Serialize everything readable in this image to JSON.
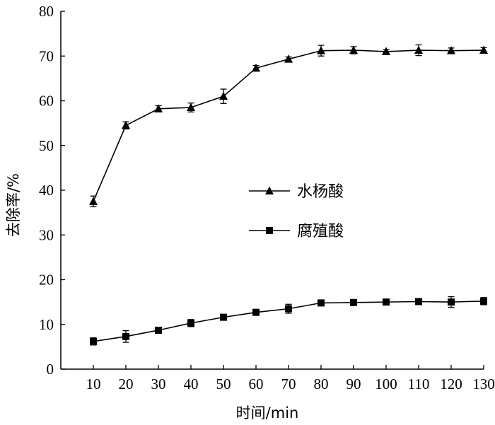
{
  "chart_data": {
    "type": "line",
    "title": "",
    "xlabel": "时间/min",
    "ylabel": "去除率/%",
    "x": [
      10,
      20,
      30,
      40,
      50,
      60,
      70,
      80,
      90,
      100,
      110,
      120,
      130
    ],
    "xlim": [
      0,
      130
    ],
    "ylim": [
      0,
      80
    ],
    "yticks": [
      0,
      10,
      20,
      30,
      40,
      50,
      60,
      70,
      80
    ],
    "grid": false,
    "legend_position": "center-right",
    "series": [
      {
        "name": "水杨酸",
        "marker": "triangle",
        "values": [
          37.5,
          54.5,
          58.2,
          58.5,
          61.0,
          67.3,
          69.3,
          71.2,
          71.3,
          71.0,
          71.3,
          71.2,
          71.3
        ],
        "errors": [
          1.2,
          0.8,
          0.7,
          1.0,
          1.6,
          0.6,
          0.5,
          1.2,
          0.8,
          0.4,
          1.2,
          0.6,
          0.6
        ]
      },
      {
        "name": "腐殖酸",
        "marker": "square",
        "values": [
          6.2,
          7.3,
          8.7,
          10.3,
          11.6,
          12.7,
          13.5,
          14.8,
          14.9,
          15.0,
          15.1,
          15.0,
          15.2
        ],
        "errors": [
          0.8,
          1.3,
          0.4,
          0.8,
          0.6,
          0.4,
          1.0,
          0.5,
          0.4,
          0.5,
          0.4,
          1.2,
          0.8
        ]
      }
    ],
    "colors": {
      "line": "#000000",
      "axis": "#000000"
    }
  }
}
